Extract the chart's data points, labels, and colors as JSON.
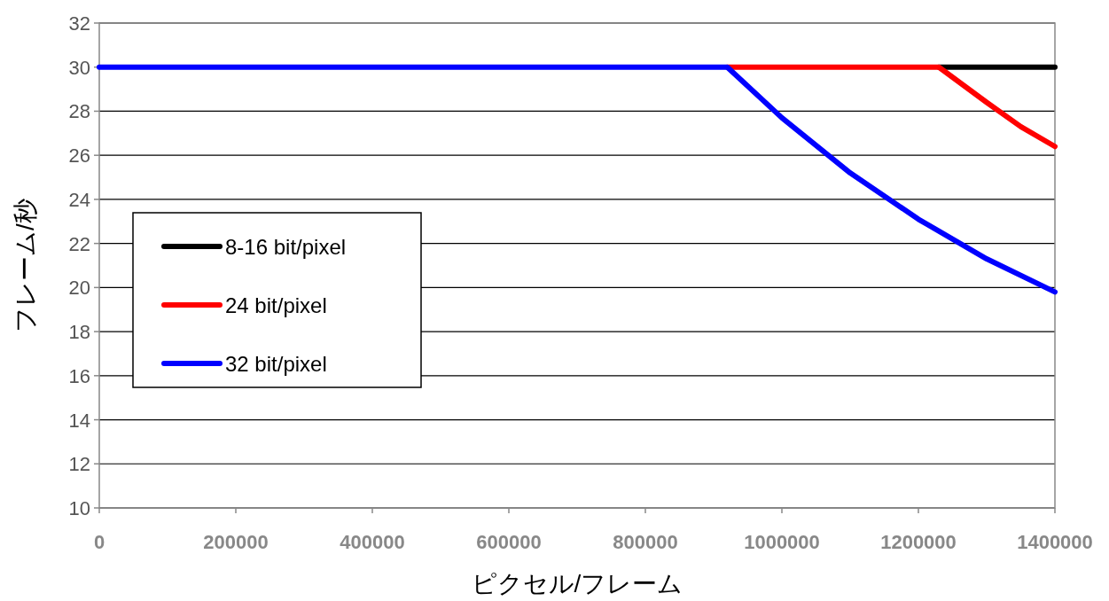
{
  "chart_data": {
    "type": "line",
    "xlabel": "ピクセル/フレーム",
    "ylabel": "フレーム/秒",
    "xlim": [
      0,
      1400000
    ],
    "xticks": [
      0,
      200000,
      400000,
      600000,
      800000,
      1000000,
      1200000,
      1400000
    ],
    "ylim": [
      10,
      32
    ],
    "yticks": [
      10,
      12,
      14,
      16,
      18,
      20,
      22,
      24,
      26,
      28,
      30,
      32
    ],
    "grid": "y",
    "legend": "left",
    "marker": "none",
    "line_style": "solid",
    "series": [
      {
        "name": "8-16 bit/pixel",
        "color": "#000000",
        "x": [
          1230000,
          1400000
        ],
        "values": [
          30,
          30
        ]
      },
      {
        "name": "24 bit/pixel",
        "color": "#ff0000",
        "x": [
          920000,
          1230000,
          1300000,
          1350000,
          1400000
        ],
        "values": [
          30,
          30,
          28.4,
          27.3,
          26.4
        ]
      },
      {
        "name": "32 bit/pixel",
        "color": "#0000ff",
        "x": [
          0,
          920000,
          1000000,
          1100000,
          1200000,
          1300000,
          1400000
        ],
        "values": [
          30,
          30,
          27.7,
          25.2,
          23.1,
          21.3,
          19.8
        ]
      }
    ]
  }
}
